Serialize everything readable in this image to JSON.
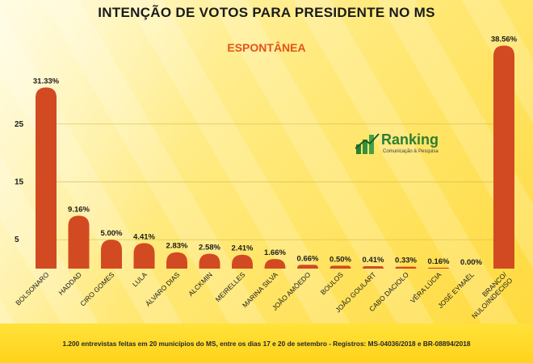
{
  "header": {
    "title": "INTENÇÃO DE VOTOS PARA PRESIDENTE NO MS",
    "subtitle": "ESPONTÂNEA"
  },
  "brand": {
    "name": "Ranking",
    "tagline": "Comunicação & Pesquisa",
    "logo_icon": "bar-chart-logo-icon",
    "logo_color": "#2e7d32"
  },
  "footer": {
    "text": "1.200 entrevistas feitas em 20 municípios do MS, entre os dias 17 e 20 de setembro - Registros:   MS-04036/2018 e BR-08894/2018"
  },
  "colors": {
    "bar": "#d24a22",
    "value_label": "#1a1a1a",
    "subtitle": "#e2531e",
    "background": "#ffe97a"
  },
  "chart_data": {
    "type": "bar",
    "title": "INTENÇÃO DE VOTOS PARA PRESIDENTE NO MS",
    "subtitle": "ESPONTÂNEA",
    "categories": [
      "BOLSONARO",
      "HADDAD",
      "CIRO GOMES",
      "LULA",
      "ÁLVARO DIAS",
      "ALCKMIN",
      "MEIRELLES",
      "MARINA SILVA",
      "JOÃO AMÔEDO",
      "BOULOS",
      "JOÃO GOULART",
      "CABO DACIOLO",
      "VÊRA LÚCIA",
      "JOSÉ EYMAËL",
      "BRANCO/ NULO/INDECISO"
    ],
    "values": [
      31.33,
      9.16,
      5.0,
      4.41,
      2.83,
      2.58,
      2.41,
      1.66,
      0.66,
      0.5,
      0.41,
      0.33,
      0.16,
      0.0,
      38.56
    ],
    "value_labels": [
      "31.33%",
      "9.16%",
      "5.00%",
      "4.41%",
      "2.83%",
      "2.58%",
      "2.41%",
      "1.66%",
      "0.66%",
      "0.50%",
      "0.41%",
      "0.33%",
      "0.16%",
      "0.00%",
      "38.56%"
    ],
    "yticks": [
      5,
      15,
      25
    ],
    "ylim": [
      0,
      38.56
    ],
    "xlabel": "",
    "ylabel": "",
    "grid": true,
    "legend": "none"
  }
}
